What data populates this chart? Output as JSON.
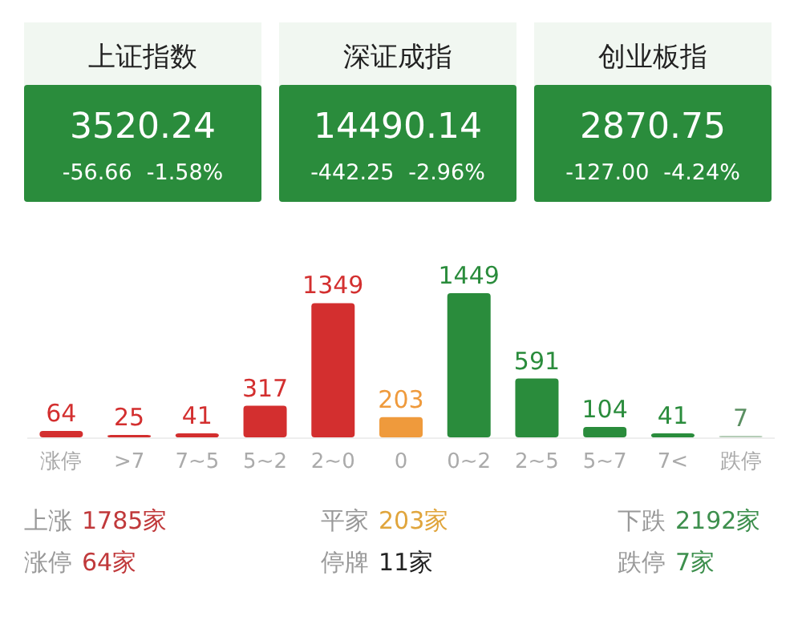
{
  "chart_data": [
    {
      "type": "other",
      "title": "上证指数",
      "annotations": [
        "3520.24",
        "-56.66",
        "-1.58%"
      ]
    },
    {
      "type": "other",
      "title": "深证成指",
      "annotations": [
        "14490.14",
        "-442.25",
        "-2.96%"
      ]
    },
    {
      "type": "other",
      "title": "创业板指",
      "annotations": [
        "2870.75",
        "-127.00",
        "-4.24%"
      ]
    },
    {
      "type": "bar",
      "categories": [
        "涨停",
        ">7",
        "7~5",
        "5~2",
        "2~0",
        "0",
        "0~2",
        "2~5",
        "5~7",
        "7<",
        "跌停"
      ],
      "values": [
        64,
        25,
        41,
        317,
        1349,
        203,
        1449,
        591,
        104,
        41,
        7
      ],
      "colors": [
        "#d32f2f",
        "#d32f2f",
        "#d32f2f",
        "#d32f2f",
        "#d32f2f",
        "#ef9a3c",
        "#2a8c3c",
        "#2a8c3c",
        "#2a8c3c",
        "#2a8c3c",
        "#b5cdb7"
      ],
      "data_labels": true
    },
    {
      "type": "other",
      "annotations": [
        "上涨",
        "1785家",
        "平家",
        "203家",
        "下跌",
        "2192家",
        "涨停",
        "64家",
        "停牌",
        "11家",
        "跌停",
        "7家"
      ]
    }
  ]
}
